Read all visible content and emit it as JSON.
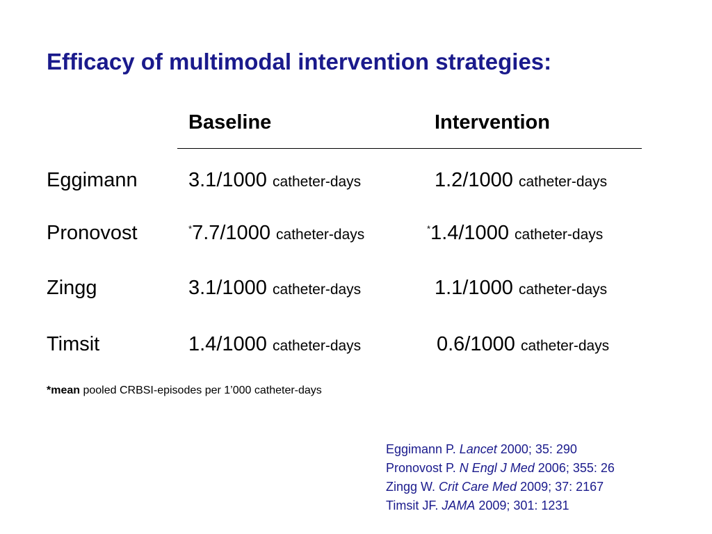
{
  "title": "Efficacy of multimodal intervention strategies:",
  "columns": {
    "baseline": "Baseline",
    "intervention": "Intervention"
  },
  "unit": "catheter-days",
  "star": "*",
  "rows": [
    {
      "name": "Eggimann",
      "baseline": "3.1/1000",
      "intervention": "1.2/1000",
      "starred": false
    },
    {
      "name": "Pronovost",
      "baseline": "7.7/1000",
      "intervention": "1.4/1000",
      "starred": true
    },
    {
      "name": "Zingg",
      "baseline": "3.1/1000",
      "intervention": "1.1/1000",
      "starred": false
    },
    {
      "name": "Timsit",
      "baseline": "1.4/1000",
      "intervention": "0.6/1000",
      "starred": false
    }
  ],
  "footnote": {
    "bold": "*mean",
    "text": " pooled CRBSI-episodes per 1’000 catheter-days"
  },
  "references": [
    {
      "author": "Eggimann P. ",
      "journal": "Lancet",
      "details": " 2000; 35: 290"
    },
    {
      "author": "Pronovost P. ",
      "journal": "N Engl J Med",
      "details": " 2006; 355: 26"
    },
    {
      "author": "Zingg W. ",
      "journal": "Crit Care Med",
      "details": " 2009; 37: 2167"
    },
    {
      "author": "Timsit JF. ",
      "journal": "JAMA",
      "details": " 2009; 301: 1231"
    }
  ],
  "colors": {
    "title": "#1a1a8c",
    "references": "#1a1a8c",
    "text": "#000000"
  }
}
